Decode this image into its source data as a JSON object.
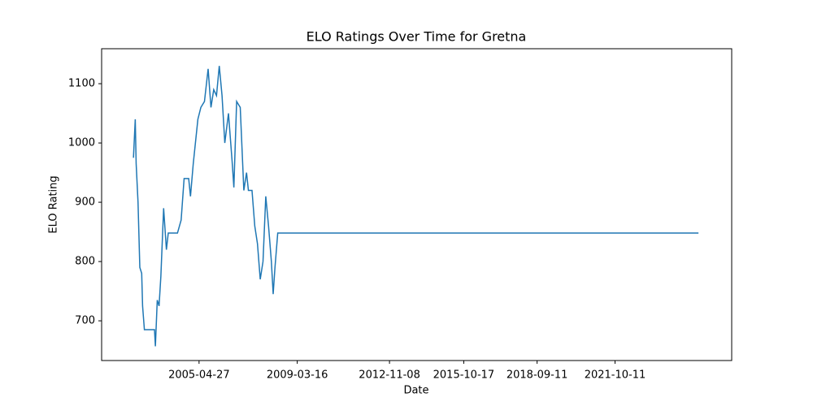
{
  "chart_data": {
    "type": "line",
    "title": "ELO Ratings Over Time for Gretna",
    "x_label": "Date",
    "y_label": "ELO Rating",
    "x": [
      "2002-09-22",
      "2002-10-18",
      "2002-10-31",
      "2002-11-27",
      "2002-12-23",
      "2003-01-19",
      "2003-02-01",
      "2003-02-27",
      "2003-07-23",
      "2003-08-05",
      "2003-09-01",
      "2003-09-27",
      "2003-10-23",
      "2003-12-02",
      "2004-01-11",
      "2004-02-07",
      "2004-06-19",
      "2004-08-11",
      "2004-09-23",
      "2004-11-28",
      "2004-12-24",
      "2005-02-02",
      "2005-04-10",
      "2005-05-23",
      "2005-07-14",
      "2005-09-05",
      "2005-10-16",
      "2005-11-25",
      "2006-01-04",
      "2006-02-13",
      "2006-03-25",
      "2006-05-04",
      "2006-06-26",
      "2006-08-17",
      "2006-09-12",
      "2006-10-22",
      "2006-12-13",
      "2007-02-03",
      "2007-03-14",
      "2007-04-10",
      "2007-06-01",
      "2007-07-11",
      "2007-08-19",
      "2007-09-28",
      "2007-11-07",
      "2007-12-17",
      "2008-01-26",
      "2008-03-07",
      "2008-04-02",
      "2008-04-28",
      "2008-06-07",
      "2025-01-29"
    ],
    "series": [
      {
        "name": "Gretna",
        "color": "#1f77b4",
        "values": [
          975,
          1040,
          965,
          900,
          790,
          780,
          725,
          685,
          685,
          657,
          735,
          725,
          775,
          890,
          820,
          848,
          848,
          870,
          940,
          940,
          910,
          965,
          1040,
          1060,
          1070,
          1125,
          1060,
          1090,
          1080,
          1130,
          1080,
          1000,
          1050,
          970,
          925,
          1070,
          1060,
          920,
          950,
          920,
          920,
          860,
          830,
          770,
          800,
          910,
          860,
          800,
          745,
          790,
          848,
          848
        ]
      }
    ],
    "xlim": [
      "2001-06-19",
      "2026-05-24"
    ],
    "xticks": [
      "2005-04-27",
      "2009-03-16",
      "2012-11-08",
      "2015-10-17",
      "2018-09-11",
      "2021-10-11"
    ],
    "ylim": [
      633,
      1159
    ],
    "yticks": [
      700,
      800,
      900,
      1000,
      1100
    ]
  }
}
